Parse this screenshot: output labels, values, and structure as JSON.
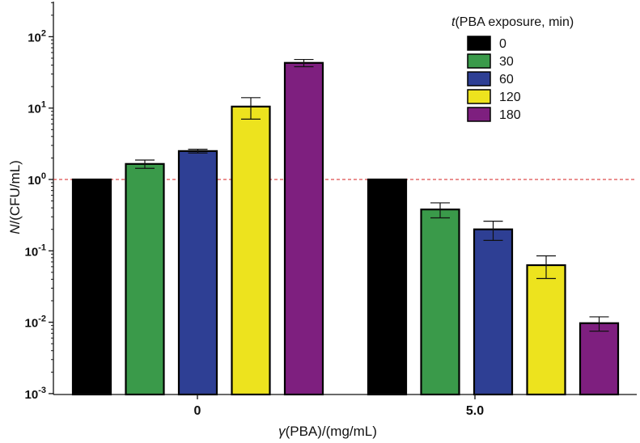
{
  "chart_data": {
    "type": "bar",
    "yscale": "log",
    "ylim": [
      0.001,
      300
    ],
    "yticks": [
      {
        "value": 0.001,
        "base": "10",
        "exp": "-3"
      },
      {
        "value": 0.01,
        "base": "10",
        "exp": "-2"
      },
      {
        "value": 0.1,
        "base": "10",
        "exp": "-1"
      },
      {
        "value": 1,
        "base": "10",
        "exp": "0"
      },
      {
        "value": 10,
        "base": "10",
        "exp": "1"
      },
      {
        "value": 100,
        "base": "10",
        "exp": "2"
      }
    ],
    "ylabel": {
      "italic": "N",
      "rest": "/(CFU/mL)"
    },
    "xlabel": {
      "italic": "γ",
      "rest": "(PBA)/(mg/mL)"
    },
    "categories": [
      "0",
      "5.0"
    ],
    "reference_line": 1,
    "legend": {
      "title_italic": "t",
      "title_rest": "(PBA exposure, min)",
      "position": "top-right"
    },
    "series": [
      {
        "name": "0",
        "color": "#000000",
        "values": [
          1.0,
          1.0
        ],
        "errors": [
          0,
          0
        ]
      },
      {
        "name": "30",
        "color": "#3a9a4a",
        "values": [
          1.65,
          0.38
        ],
        "errors": [
          0.22,
          0.09
        ]
      },
      {
        "name": "60",
        "color": "#2e3f94",
        "values": [
          2.5,
          0.2
        ],
        "errors": [
          0.15,
          0.06
        ]
      },
      {
        "name": "120",
        "color": "#ede31e",
        "values": [
          10.5,
          0.063
        ],
        "errors": [
          3.5,
          0.022
        ]
      },
      {
        "name": "180",
        "color": "#7e1f7f",
        "values": [
          43,
          0.0097
        ],
        "errors": [
          5,
          0.0022
        ]
      }
    ]
  }
}
